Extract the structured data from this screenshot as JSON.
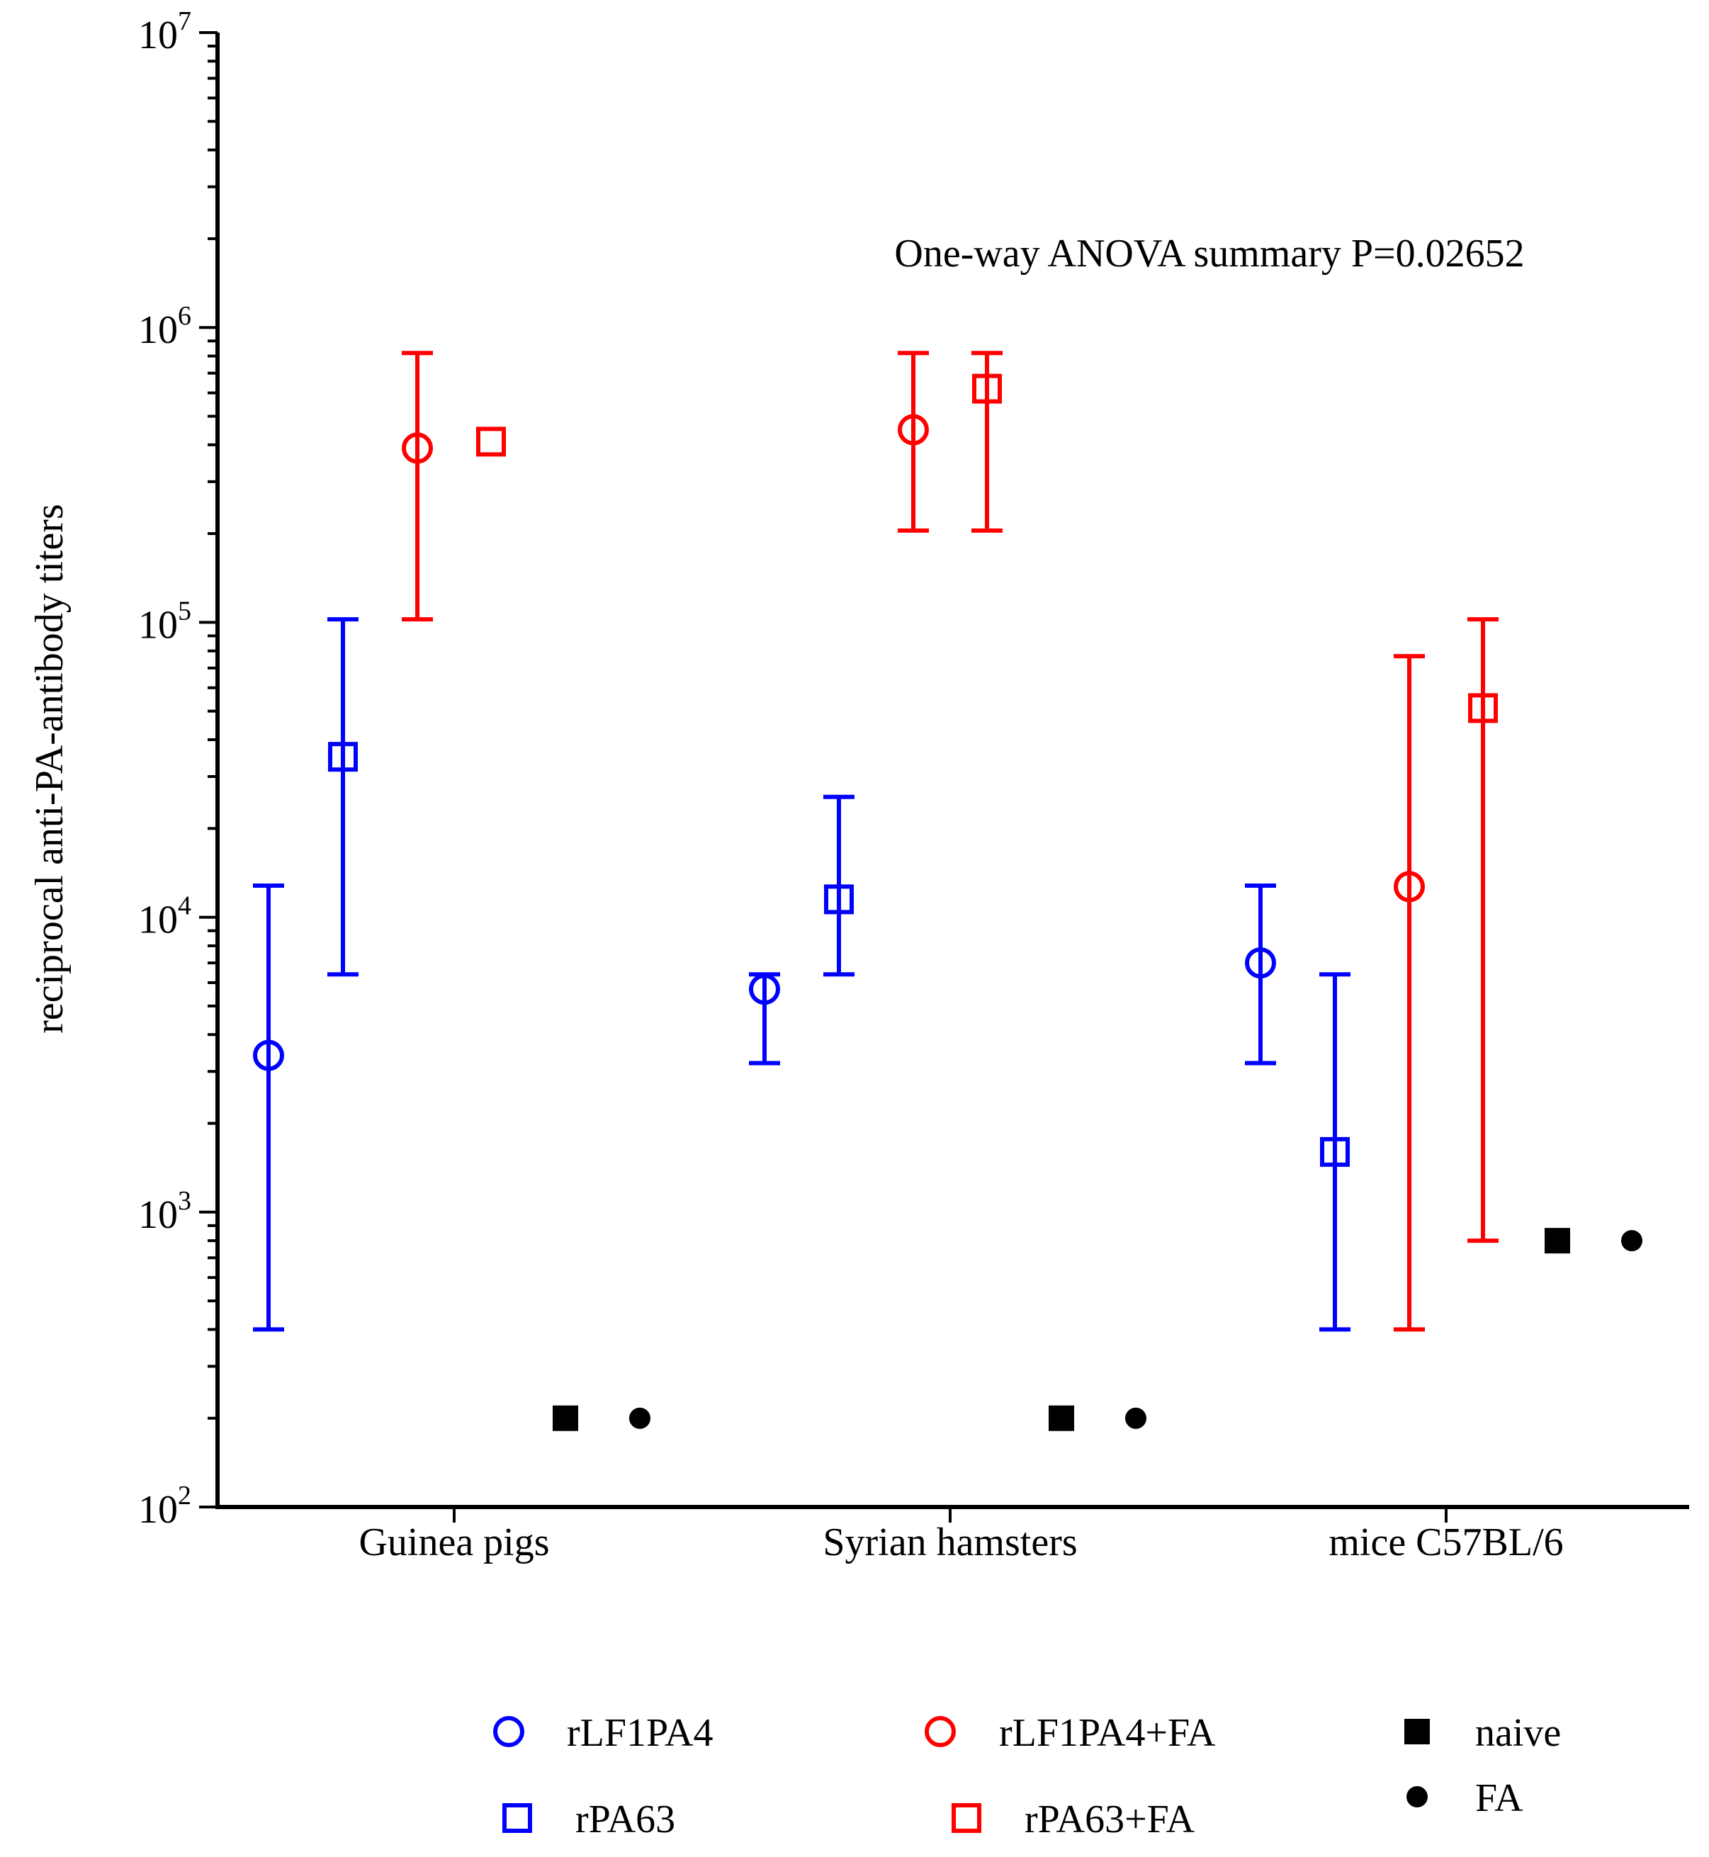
{
  "chart_data": {
    "type": "scatter",
    "title": "",
    "annotation": "One-way ANOVA summary P=0.02652",
    "ylabel": "reciprocal anti-PA-antibody titers",
    "xlabel": "",
    "yscale": "log10",
    "ylim": [
      100,
      10000000
    ],
    "y_ticks": [
      {
        "base": "10",
        "exp": "2"
      },
      {
        "base": "10",
        "exp": "3"
      },
      {
        "base": "10",
        "exp": "4"
      },
      {
        "base": "10",
        "exp": "5"
      },
      {
        "base": "10",
        "exp": "6"
      },
      {
        "base": "10",
        "exp": "7"
      }
    ],
    "categories": [
      "Guinea pigs",
      "Syrian hamsters",
      "mice C57BL/6"
    ],
    "series": [
      {
        "name": "rLF1PA4",
        "marker": "open-circle",
        "color": "#0000ff",
        "values": [
          3400,
          5700,
          7000
        ],
        "err_low": [
          400,
          3200,
          3200
        ],
        "err_high": [
          12800,
          6400,
          12800
        ]
      },
      {
        "name": "rPA63",
        "marker": "open-square",
        "color": "#0000ff",
        "values": [
          35000,
          11500,
          1600
        ],
        "err_low": [
          6400,
          6400,
          400
        ],
        "err_high": [
          102400,
          25600,
          6400
        ]
      },
      {
        "name": "rLF1PA4+FA",
        "marker": "open-circle",
        "color": "#ff0000",
        "values": [
          390000,
          450000,
          12700
        ],
        "err_low": [
          102400,
          204800,
          400
        ],
        "err_high": [
          819200,
          819200,
          76800
        ]
      },
      {
        "name": "rPA63+FA",
        "marker": "open-square",
        "color": "#ff0000",
        "values": [
          410000,
          620000,
          51200
        ],
        "err_low": [
          null,
          204800,
          800
        ],
        "err_high": [
          null,
          819200,
          102400
        ]
      },
      {
        "name": "naive",
        "marker": "filled-square",
        "color": "#000000",
        "values": [
          200,
          200,
          800
        ],
        "err_low": [
          null,
          null,
          null
        ],
        "err_high": [
          null,
          null,
          null
        ]
      },
      {
        "name": "FA",
        "marker": "filled-circle",
        "color": "#000000",
        "values": [
          200,
          200,
          800
        ],
        "err_low": [
          null,
          null,
          null
        ],
        "err_high": [
          null,
          null,
          null
        ]
      }
    ],
    "legend": {
      "placement": "bottom",
      "items": [
        {
          "label": "rLF1PA4",
          "series": 0
        },
        {
          "label": "rLF1PA4+FA",
          "series": 2
        },
        {
          "label": "naive",
          "series": 4
        },
        {
          "label": "rPA63",
          "series": 1
        },
        {
          "label": "rPA63+FA",
          "series": 3
        },
        {
          "label": "FA",
          "series": 5
        }
      ]
    }
  }
}
